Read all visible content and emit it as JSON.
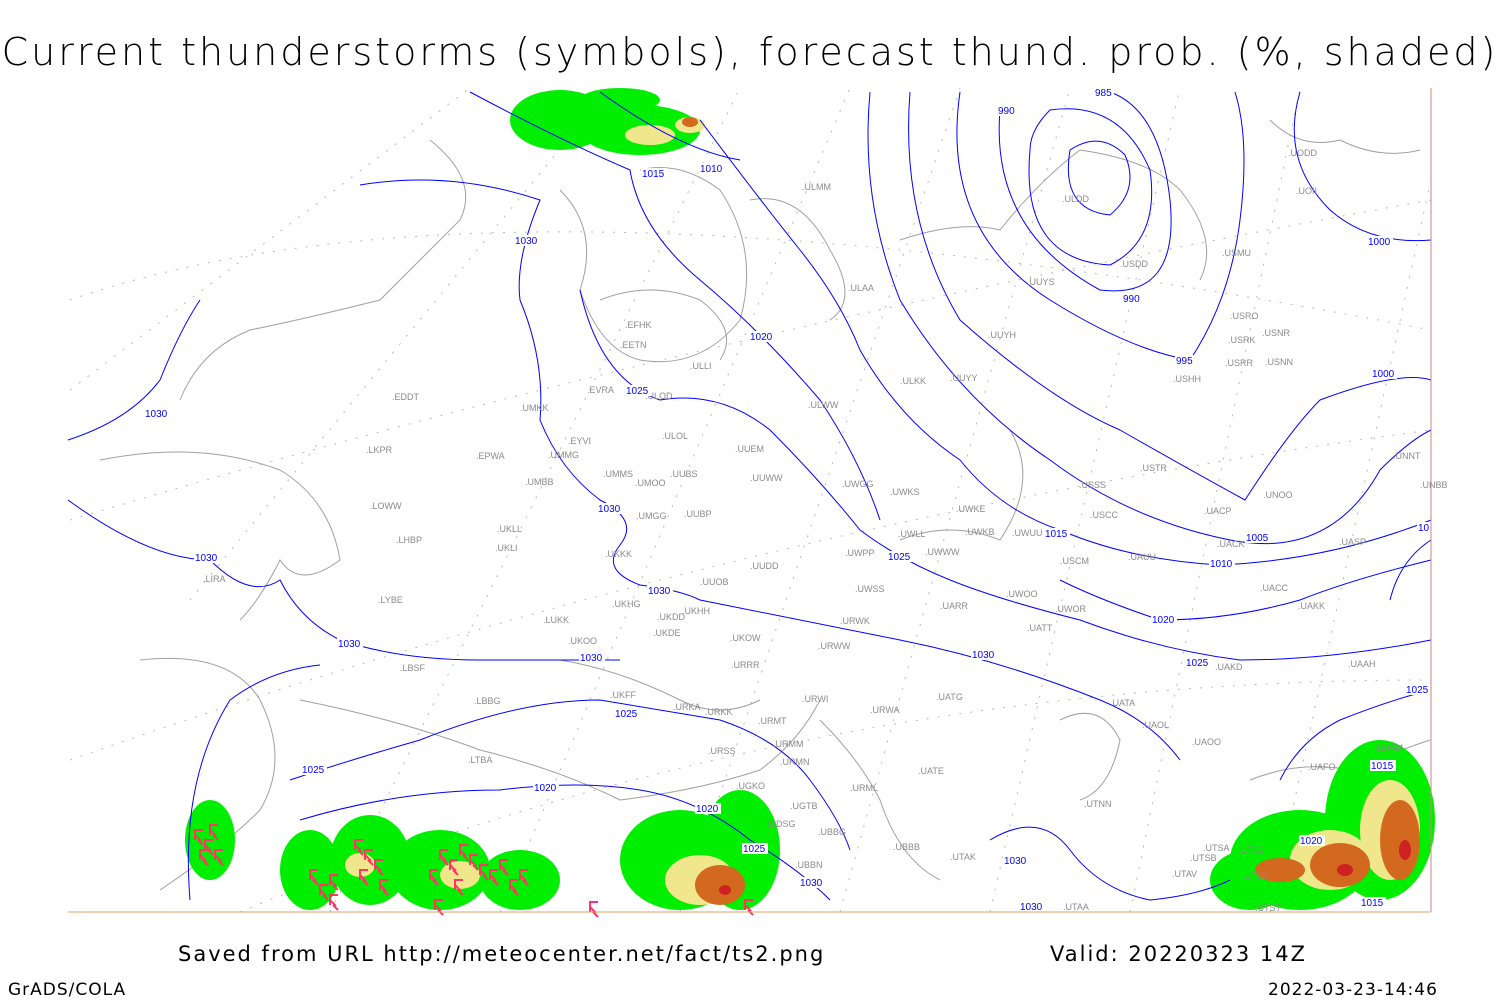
{
  "title": "Current thunderstorms (symbols), forecast thund. prob. (%, shaded)",
  "footer": {
    "source": "Saved from URL http://meteocenter.net/fact/ts2.png",
    "valid": "Valid: 20220323 14Z",
    "software": "GrADS/COLA",
    "timestamp": "2022-03-23-14:46"
  },
  "colors": {
    "isobar": "#0000ff",
    "coastline": "#a0a0a0",
    "station_label": "#8a8a8a",
    "prob_low": "#00ee00",
    "prob_mid": "#f0e68c",
    "prob_high": "#d2691e",
    "prob_max": "#cc2222",
    "thunderstorm_symbol": "#ff3366"
  },
  "stations": [
    "ULMM",
    "ULAA",
    "EFHK",
    "EETN",
    "ULLI",
    "EVRA",
    "ULOD",
    "EDDT",
    "UMKK",
    "ULWW",
    "ULKK",
    "UUYY",
    "UUYH",
    "UUYS",
    "ULDD",
    "USDD",
    "USMU",
    "UODD",
    "UOII",
    "USRO",
    "USRK",
    "USNR",
    "USRR",
    "USNN",
    "USHH",
    "ULOL",
    "UUEM",
    "EYVI",
    "LKPR",
    "EPWA",
    "UMMG",
    "UMMS",
    "UMOO",
    "UUBS",
    "UUWW",
    "UWGG",
    "UWKS",
    "UMBB",
    "LOWW",
    "UMGG",
    "UUBP",
    "UWKE",
    "UWLL",
    "UWKB",
    "UWUU",
    "USSS",
    "USTR",
    "USCC",
    "UACP",
    "UNOO",
    "UNNT",
    "UNBB",
    "UACK",
    "UASP",
    "LHBP",
    "UKLL",
    "UKLI",
    "UKKK",
    "UWPP",
    "UWWW",
    "USCM",
    "UAUU",
    "UUDD",
    "UUOB",
    "LIRA",
    "UWSS",
    "UACC",
    "UARR",
    "UWOO",
    "UWOR",
    "UAKK",
    "LYBE",
    "UKHG",
    "UKHH",
    "UKDD",
    "LUKK",
    "URWK",
    "UATT",
    "UKOO",
    "UKDE",
    "UKOW",
    "URWW",
    "LBSF",
    "URRR",
    "UAKD",
    "UAAH",
    "UKFF",
    "URKA",
    "URKK",
    "URWI",
    "UATG",
    "LBBG",
    "UATA",
    "URWA",
    "URMT",
    "UAOL",
    "UAOO",
    "URMM",
    "LTBA",
    "URSS",
    "URMN",
    "UATE",
    "UAFM",
    "UAFO",
    "URML",
    "UGKO",
    "UTNN",
    "UGTB",
    "UDSG",
    "UBBB",
    "UBBG",
    "UTAK",
    "UBBN",
    "UTSA",
    "UTSS",
    "UTSB",
    "UTAV",
    "UTSK",
    "UTAA",
    "UTST"
  ],
  "isobar_labels": [
    "1030",
    "1015",
    "1010",
    "990",
    "985",
    "990",
    "995",
    "1000",
    "1000",
    "1020",
    "1025",
    "1030",
    "1030",
    "1030",
    "1030",
    "1025",
    "1015",
    "1010",
    "1005",
    "1020",
    "1025",
    "1030",
    "1030",
    "1030",
    "1025",
    "1025",
    "1020",
    "1020",
    "1025",
    "1030",
    "1030",
    "1030",
    "1025",
    "10",
    "1015",
    "1020",
    "1015"
  ]
}
